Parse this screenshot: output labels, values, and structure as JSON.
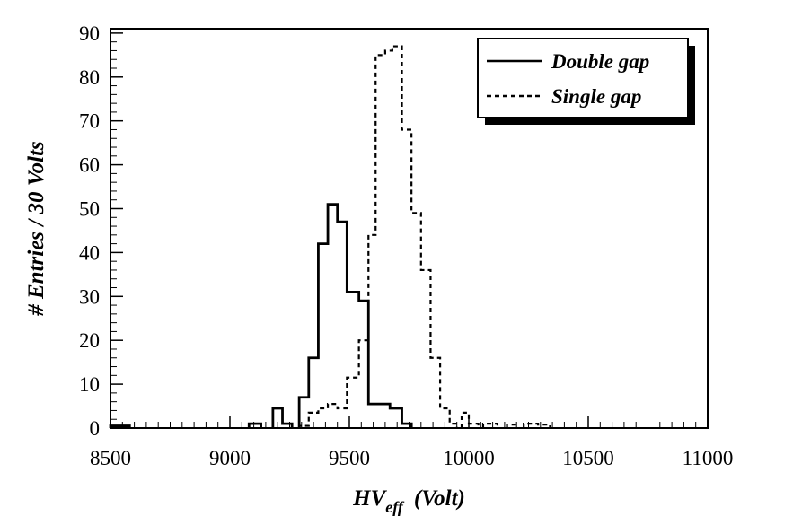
{
  "chart_data": {
    "type": "histogram",
    "xlabel": "HV",
    "xlabel_sub": "eff",
    "xlabel_unit": "(Volt)",
    "ylabel": "# Entries / 30 Volts",
    "xlim": [
      8500,
      11000
    ],
    "ylim": [
      0,
      91
    ],
    "bin_width": 30,
    "x_ticks": [
      8500,
      9000,
      9500,
      10000,
      10500,
      11000
    ],
    "x_tick_labels": [
      "8500",
      "9000",
      "9500",
      "10000",
      "10500",
      "11000"
    ],
    "y_ticks": [
      0,
      10,
      20,
      30,
      40,
      50,
      60,
      70,
      80,
      90
    ],
    "y_tick_labels": [
      "0",
      "10",
      "20",
      "30",
      "40",
      "50",
      "60",
      "70",
      "80",
      "90"
    ],
    "legend_position": "top-right",
    "series": [
      {
        "name": "Double gap",
        "style": "solid",
        "bins": [
          [
            8500,
            8580,
            0.5
          ],
          [
            9080,
            9130,
            1
          ],
          [
            9180,
            9220,
            4.5
          ],
          [
            9220,
            9260,
            1
          ],
          [
            9290,
            9330,
            7
          ],
          [
            9330,
            9370,
            16
          ],
          [
            9370,
            9410,
            42
          ],
          [
            9410,
            9450,
            51
          ],
          [
            9450,
            9490,
            47
          ],
          [
            9490,
            9540,
            31
          ],
          [
            9540,
            9580,
            29
          ],
          [
            9580,
            9620,
            5.5
          ],
          [
            9620,
            9670,
            5.5
          ],
          [
            9670,
            9720,
            4.5
          ],
          [
            9720,
            9760,
            1
          ]
        ]
      },
      {
        "name": "Single gap",
        "style": "dashed",
        "bins": [
          [
            9290,
            9330,
            0.5
          ],
          [
            9330,
            9370,
            3.5
          ],
          [
            9370,
            9410,
            4.5
          ],
          [
            9410,
            9450,
            5.5
          ],
          [
            9450,
            9490,
            4.5
          ],
          [
            9490,
            9540,
            11.5
          ],
          [
            9540,
            9580,
            20
          ],
          [
            9580,
            9610,
            44
          ],
          [
            9610,
            9650,
            85
          ],
          [
            9650,
            9680,
            86
          ],
          [
            9680,
            9720,
            87
          ],
          [
            9720,
            9760,
            68
          ],
          [
            9760,
            9800,
            49
          ],
          [
            9800,
            9840,
            36
          ],
          [
            9840,
            9880,
            16
          ],
          [
            9880,
            9920,
            4.5
          ],
          [
            9920,
            9950,
            1
          ],
          [
            9970,
            10000,
            3.5
          ],
          [
            10000,
            10040,
            1
          ],
          [
            10060,
            10120,
            1
          ],
          [
            10160,
            10200,
            0.8
          ],
          [
            10230,
            10290,
            1
          ],
          [
            10290,
            10340,
            0.8
          ]
        ]
      }
    ]
  }
}
